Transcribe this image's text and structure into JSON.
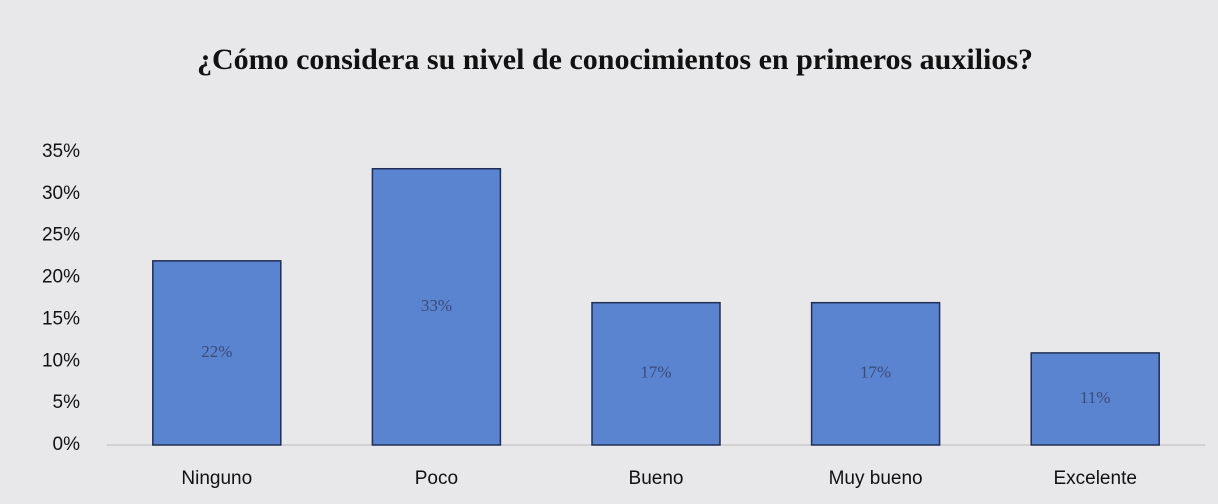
{
  "chart_data": {
    "type": "bar",
    "title": "¿Cómo considera su nivel de conocimientos en primeros auxilios?",
    "categories": [
      "Ninguno",
      "Poco",
      "Bueno",
      "Muy bueno",
      "Excelente"
    ],
    "values": [
      22,
      33,
      17,
      17,
      11
    ],
    "value_labels": [
      "22%",
      "33%",
      "17%",
      "17%",
      "11%"
    ],
    "color": "#5b84d0",
    "ylim": [
      0,
      35
    ],
    "yticks": [
      {
        "value": 0,
        "label": "0%"
      },
      {
        "value": 5,
        "label": "5%"
      },
      {
        "value": 10,
        "label": "10%"
      },
      {
        "value": 15,
        "label": "15%"
      },
      {
        "value": 20,
        "label": "20%"
      },
      {
        "value": 25,
        "label": "25%"
      },
      {
        "value": 30,
        "label": "30%"
      },
      {
        "value": 35,
        "label": "35%"
      }
    ],
    "grid": false
  }
}
